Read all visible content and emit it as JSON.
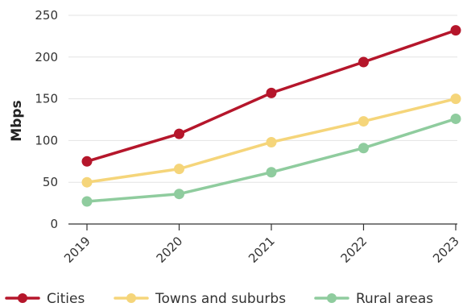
{
  "chart_data": {
    "type": "line",
    "title": "",
    "xlabel": "",
    "ylabel": "Mbps",
    "categories": [
      "2019",
      "2020",
      "2021",
      "2022",
      "2023"
    ],
    "ylim": [
      0,
      250
    ],
    "yticks": [
      0,
      50,
      100,
      150,
      200,
      250
    ],
    "grid": true,
    "legend_position": "bottom",
    "series": [
      {
        "name": "Cities",
        "color": "#b5162b",
        "values": [
          75,
          108,
          157,
          194,
          232
        ]
      },
      {
        "name": "Towns and suburbs",
        "color": "#f5d57a",
        "values": [
          50,
          66,
          98,
          123,
          150
        ]
      },
      {
        "name": "Rural areas",
        "color": "#8fcc9e",
        "values": [
          27,
          36,
          62,
          91,
          126
        ]
      }
    ]
  }
}
